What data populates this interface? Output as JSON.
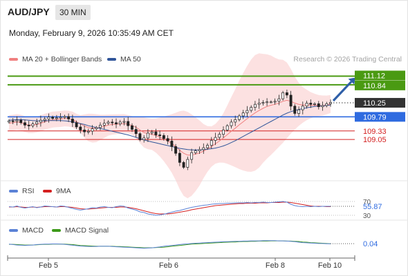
{
  "header": {
    "symbol": "AUD/JPY",
    "timeframe": "30 MIN",
    "datetime": "Monday, February 9, 2026 10:35:49 AM CET"
  },
  "credit": "Research © 2026 Trading Central",
  "legend": {
    "main": [
      {
        "label": "MA 20 + Bollinger Bands",
        "color": "#f08080"
      },
      {
        "label": "MA 50",
        "color": "#30559a"
      }
    ],
    "rsi": [
      {
        "label": "RSI",
        "color": "#5b82d6"
      },
      {
        "label": "9MA",
        "color": "#d42020"
      }
    ],
    "macd": [
      {
        "label": "MACD",
        "color": "#5b82d6"
      },
      {
        "label": "MACD Signal",
        "color": "#3d9a1a"
      }
    ]
  },
  "chart_data": [
    {
      "type": "candlestick",
      "pair": "AUD/JPY",
      "x_tick_labels": [
        "Feb 5",
        "Feb 6",
        "Feb 8",
        "Feb 10"
      ],
      "ylim": [
        107.7,
        111.4
      ],
      "levels": [
        {
          "value": 111.12,
          "label": "111.12",
          "color": "#4a9a12",
          "kind": "resistance"
        },
        {
          "value": 110.84,
          "label": "110.84",
          "color": "#4a9a12",
          "kind": "resistance"
        },
        {
          "value": 110.25,
          "label": "110.25",
          "color": "#333333",
          "kind": "last price"
        },
        {
          "value": 109.79,
          "label": "109.79",
          "color": "#2f6be0",
          "kind": "pivot"
        },
        {
          "value": 109.33,
          "label": "109.33",
          "color": "#d42020",
          "kind": "support"
        },
        {
          "value": 109.05,
          "label": "109.05",
          "color": "#d42020",
          "kind": "support"
        }
      ],
      "forecast_arrow": {
        "from": 110.25,
        "to": 111.12,
        "color": "#2f5fa8"
      },
      "close": [
        109.66,
        109.64,
        109.68,
        109.6,
        109.52,
        109.5,
        109.56,
        109.62,
        109.68,
        109.72,
        109.78,
        109.74,
        109.76,
        109.78,
        109.8,
        109.72,
        109.6,
        109.46,
        109.36,
        109.3,
        109.32,
        109.4,
        109.44,
        109.52,
        109.58,
        109.62,
        109.6,
        109.56,
        109.62,
        109.64,
        109.5,
        109.38,
        109.24,
        109.04,
        109.1,
        109.26,
        109.3,
        109.2,
        109.18,
        109.08,
        109.0,
        108.82,
        108.6,
        108.3,
        108.14,
        108.4,
        108.62,
        108.68,
        108.72,
        108.78,
        108.86,
        109.02,
        109.12,
        109.22,
        109.36,
        109.5,
        109.62,
        109.7,
        109.82,
        109.92,
        110.0,
        110.1,
        110.2,
        110.24,
        110.26,
        110.28,
        110.28,
        110.3,
        110.38,
        110.58,
        110.5,
        110.14,
        109.9,
        110.02,
        110.14,
        110.24,
        110.2,
        110.22,
        110.12,
        110.16,
        110.22,
        110.26
      ],
      "ma20": [
        109.58,
        109.6,
        109.62,
        109.6,
        109.55,
        109.52,
        109.52,
        109.54,
        109.58,
        109.63,
        109.67,
        109.7,
        109.71,
        109.72,
        109.74,
        109.73,
        109.7,
        109.63,
        109.56,
        109.49,
        109.44,
        109.42,
        109.42,
        109.45,
        109.48,
        109.52,
        109.54,
        109.55,
        109.56,
        109.57,
        109.55,
        109.51,
        109.45,
        109.36,
        109.28,
        109.24,
        109.22,
        109.18,
        109.13,
        109.07,
        109.0,
        108.92,
        108.82,
        108.7,
        108.6,
        108.54,
        108.54,
        108.57,
        108.61,
        108.67,
        108.74,
        108.82,
        108.91,
        109.0,
        109.1,
        109.21,
        109.32,
        109.42,
        109.53,
        109.63,
        109.73,
        109.83,
        109.92,
        110.0,
        110.07,
        110.13,
        110.17,
        110.2,
        110.24,
        110.3,
        110.33,
        110.3,
        110.24,
        110.2,
        110.18,
        110.18,
        110.17,
        110.17,
        110.16,
        110.16,
        110.18,
        110.21
      ],
      "ma50": [
        109.68,
        109.69,
        109.7,
        109.7,
        109.69,
        109.68,
        109.67,
        109.66,
        109.66,
        109.66,
        109.67,
        109.67,
        109.67,
        109.67,
        109.66,
        109.65,
        109.63,
        109.6,
        109.57,
        109.54,
        109.5,
        109.47,
        109.44,
        109.41,
        109.38,
        109.35,
        109.32,
        109.29,
        109.26,
        109.23,
        109.2,
        109.16,
        109.12,
        109.08,
        109.04,
        109.0,
        108.97,
        108.94,
        108.91,
        108.88,
        108.85,
        108.82,
        108.79,
        108.76,
        108.74,
        108.72,
        108.71,
        108.71,
        108.71,
        108.72,
        108.73,
        108.75,
        108.77,
        108.8,
        108.84,
        108.89,
        108.95,
        109.01,
        109.08,
        109.15,
        109.22,
        109.29,
        109.36,
        109.43,
        109.5,
        109.57,
        109.64,
        109.71,
        109.78,
        109.85,
        109.91,
        109.96,
        110.0,
        110.03,
        110.06,
        110.09,
        110.11,
        110.13,
        110.14,
        110.15,
        110.16,
        110.18
      ]
    },
    {
      "type": "line",
      "indicator": "RSI",
      "ylim": [
        20,
        80
      ],
      "levels": [
        {
          "value": 70,
          "label": "70"
        },
        {
          "value": 30,
          "label": "30"
        }
      ],
      "last_value": "55.87",
      "series": [
        {
          "name": "RSI",
          "values": [
            55,
            54,
            57,
            53,
            51,
            53,
            55,
            52,
            54,
            57,
            56,
            55,
            54,
            57,
            56,
            53,
            50,
            47,
            45,
            47,
            49,
            52,
            51,
            54,
            55,
            53,
            52,
            55,
            57,
            56,
            51,
            48,
            45,
            40,
            38,
            34,
            32,
            30,
            31,
            33,
            36,
            39,
            42,
            44,
            47,
            50,
            53,
            55,
            57,
            59,
            60,
            62,
            63,
            64,
            64,
            65,
            65,
            66,
            66,
            66,
            67,
            66,
            67,
            67,
            68,
            67,
            67,
            68,
            69,
            70,
            68,
            62,
            58,
            56,
            55,
            56,
            55,
            56,
            55,
            56,
            56,
            56
          ]
        },
        {
          "name": "9MA",
          "values": [
            54,
            54,
            55,
            54,
            53,
            53,
            54,
            53,
            54,
            55,
            55,
            55,
            54,
            55,
            55,
            54,
            53,
            51,
            49,
            48,
            48,
            49,
            50,
            51,
            52,
            53,
            53,
            53,
            54,
            54,
            53,
            51,
            49,
            46,
            43,
            40,
            37,
            35,
            34,
            34,
            34,
            35,
            37,
            39,
            41,
            43,
            46,
            48,
            50,
            52,
            54,
            56,
            58,
            59,
            60,
            61,
            62,
            63,
            64,
            64,
            65,
            65,
            65,
            66,
            66,
            66,
            67,
            67,
            67,
            68,
            68,
            67,
            65,
            63,
            61,
            59,
            57,
            56,
            56,
            56,
            55,
            55
          ]
        }
      ]
    },
    {
      "type": "line",
      "indicator": "MACD",
      "ylim": [
        -0.4,
        0.3
      ],
      "last_value": "0.04",
      "series": [
        {
          "name": "MACD",
          "values": [
            0.02,
            0.0,
            -0.02,
            -0.03,
            -0.04,
            -0.03,
            -0.02,
            0.0,
            0.01,
            0.02,
            0.02,
            0.03,
            0.03,
            0.02,
            0.01,
            -0.01,
            -0.03,
            -0.05,
            -0.07,
            -0.08,
            -0.09,
            -0.09,
            -0.09,
            -0.08,
            -0.08,
            -0.08,
            -0.09,
            -0.1,
            -0.11,
            -0.12,
            -0.13,
            -0.14,
            -0.15,
            -0.16,
            -0.17,
            -0.16,
            -0.15,
            -0.13,
            -0.11,
            -0.08,
            -0.06,
            -0.04,
            -0.02,
            0.0,
            0.02,
            0.03,
            0.05,
            0.06,
            0.07,
            0.08,
            0.09,
            0.1,
            0.11,
            0.12,
            0.13,
            0.13,
            0.14,
            0.15,
            0.15,
            0.16,
            0.16,
            0.17,
            0.17,
            0.17,
            0.18,
            0.18,
            0.18,
            0.18,
            0.17,
            0.17,
            0.16,
            0.15,
            0.13,
            0.11,
            0.09,
            0.08,
            0.07,
            0.06,
            0.05,
            0.05,
            0.04,
            0.04
          ]
        },
        {
          "name": "MACD Signal",
          "values": [
            0.01,
            0.01,
            0.0,
            -0.01,
            -0.02,
            -0.02,
            -0.02,
            -0.01,
            0.0,
            0.01,
            0.01,
            0.02,
            0.02,
            0.02,
            0.02,
            0.01,
            0.0,
            -0.02,
            -0.04,
            -0.05,
            -0.06,
            -0.07,
            -0.08,
            -0.08,
            -0.08,
            -0.08,
            -0.08,
            -0.09,
            -0.09,
            -0.1,
            -0.11,
            -0.12,
            -0.13,
            -0.14,
            -0.15,
            -0.15,
            -0.15,
            -0.14,
            -0.13,
            -0.12,
            -0.1,
            -0.08,
            -0.06,
            -0.04,
            -0.02,
            0.0,
            0.02,
            0.03,
            0.04,
            0.05,
            0.06,
            0.07,
            0.08,
            0.09,
            0.1,
            0.11,
            0.12,
            0.12,
            0.13,
            0.14,
            0.14,
            0.15,
            0.15,
            0.16,
            0.16,
            0.16,
            0.17,
            0.17,
            0.17,
            0.17,
            0.16,
            0.16,
            0.15,
            0.14,
            0.12,
            0.11,
            0.09,
            0.08,
            0.07,
            0.06,
            0.05,
            0.04
          ]
        }
      ]
    }
  ]
}
